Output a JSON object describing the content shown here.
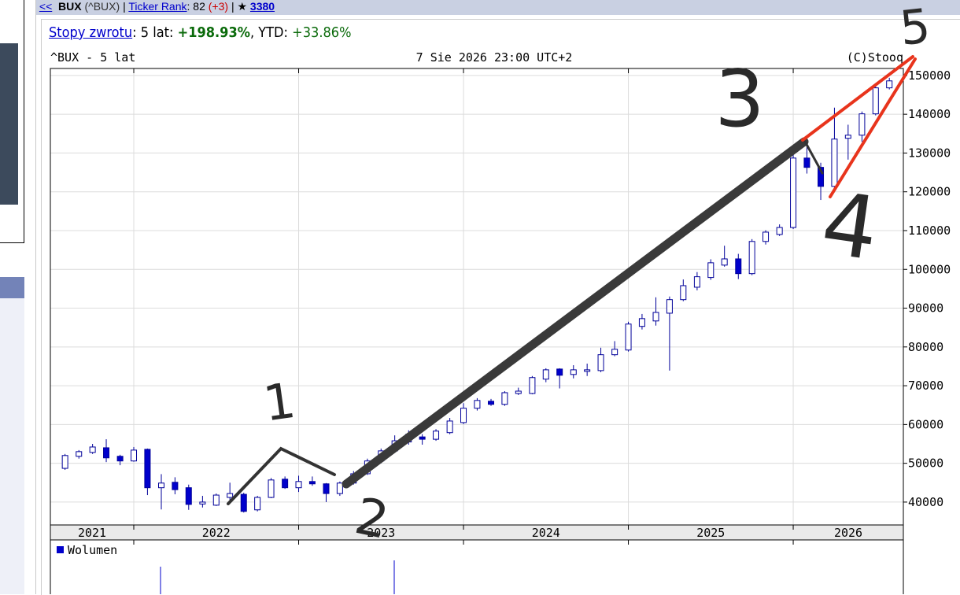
{
  "header": {
    "back": "<<",
    "ticker": "BUX",
    "symbol": "(^BUX)",
    "sep1": "|",
    "rank_link": "Ticker Rank",
    "rank": ": 82",
    "rank_change": "(+3)",
    "star": "| ★",
    "fans": "3380"
  },
  "returns": {
    "link": "Stopy zwrotu",
    "period": ": 5 lat:",
    "five_year": "+198.93%",
    "ytd_label": ", YTD:",
    "ytd": "+33.86%"
  },
  "chart_data": {
    "type": "candlestick",
    "title": "^BUX - 5 lat",
    "subtitle": "7 Sie 2026 23:00 UTC+2",
    "credit": "(C)Stooq",
    "x": [
      2021.583,
      2021.667,
      2021.75,
      2021.833,
      2021.917,
      2022,
      2022.083,
      2022.167,
      2022.25,
      2022.333,
      2022.417,
      2022.5,
      2022.583,
      2022.667,
      2022.75,
      2022.833,
      2022.917,
      2023,
      2023.083,
      2023.167,
      2023.25,
      2023.333,
      2023.417,
      2023.5,
      2023.583,
      2023.667,
      2023.75,
      2023.833,
      2023.917,
      2024,
      2024.083,
      2024.167,
      2024.25,
      2024.333,
      2024.417,
      2024.5,
      2024.583,
      2024.667,
      2024.75,
      2024.833,
      2024.917,
      2025,
      2025.083,
      2025.167,
      2025.25,
      2025.333,
      2025.417,
      2025.5,
      2025.583,
      2025.667,
      2025.75,
      2025.833,
      2025.917,
      2026,
      2026.083,
      2026.167,
      2026.25,
      2026.333,
      2026.417,
      2026.5,
      2026.583
    ],
    "open": [
      48700,
      51800,
      52800,
      54000,
      51800,
      50600,
      53600,
      43700,
      45100,
      43700,
      39500,
      39200,
      41200,
      42000,
      38000,
      41200,
      45900,
      43700,
      45300,
      44700,
      42200,
      44900,
      47300,
      50600,
      53200,
      55500,
      56800,
      56200,
      57900,
      60500,
      64200,
      66000,
      65200,
      68000,
      68000,
      71700,
      74300,
      72900,
      73700,
      73900,
      78000,
      79200,
      85300,
      86700,
      88700,
      92200,
      95400,
      97900,
      101100,
      102700,
      98900,
      107200,
      109000,
      110800,
      128700,
      126300,
      121400,
      133800,
      134600,
      140100,
      146800
    ],
    "high": [
      52400,
      53400,
      55000,
      56200,
      52200,
      54200,
      53800,
      47200,
      46400,
      44500,
      41600,
      42200,
      45000,
      42400,
      41600,
      46200,
      46600,
      46800,
      46600,
      44900,
      45300,
      48000,
      51200,
      53800,
      57200,
      58500,
      57500,
      58800,
      61700,
      65500,
      66800,
      66600,
      68600,
      69500,
      72500,
      74500,
      74500,
      75300,
      75700,
      79800,
      81500,
      86500,
      88500,
      92800,
      93000,
      97400,
      99300,
      102600,
      106100,
      104000,
      107800,
      110100,
      111600,
      130000,
      131700,
      127500,
      141700,
      137300,
      140700,
      147400,
      149400
    ],
    "low": [
      48300,
      51200,
      52400,
      50300,
      49500,
      50400,
      41800,
      38100,
      42000,
      38000,
      38600,
      39000,
      40600,
      37300,
      37600,
      41000,
      43400,
      42600,
      44200,
      40000,
      41600,
      44500,
      47000,
      50000,
      52800,
      54800,
      54800,
      55800,
      57500,
      60100,
      63600,
      64800,
      64800,
      67600,
      67800,
      70900,
      69300,
      71900,
      72500,
      73500,
      77600,
      78800,
      84500,
      85500,
      73900,
      91800,
      94600,
      97300,
      100700,
      97500,
      98500,
      106400,
      108600,
      110400,
      124700,
      117900,
      120600,
      128300,
      132900,
      139700,
      146400
    ],
    "close": [
      52000,
      53000,
      54200,
      51400,
      50600,
      53400,
      43700,
      44900,
      43200,
      39400,
      40000,
      41800,
      42200,
      37600,
      41200,
      45700,
      43700,
      45300,
      44700,
      42200,
      44900,
      47300,
      50600,
      53200,
      55800,
      57500,
      56200,
      58300,
      60900,
      64200,
      66200,
      65200,
      68200,
      68600,
      72100,
      74100,
      72700,
      74100,
      74100,
      78000,
      79400,
      85900,
      87300,
      88900,
      92200,
      95800,
      98100,
      101700,
      102700,
      98900,
      107200,
      109600,
      110800,
      128700,
      126300,
      121400,
      133600,
      134600,
      140100,
      146800,
      148600
    ],
    "up_color": "#ffffff",
    "down_color": "#0000cc",
    "stroke_color": "#000099",
    "xlim": [
      2021.494,
      2026.668
    ],
    "xticks": [
      2022,
      2023,
      2024,
      2025,
      2026
    ],
    "year_labels": [
      2021,
      2022,
      2023,
      2024,
      2025,
      2026
    ],
    "ylim": [
      34100,
      151800
    ],
    "yticks": [
      40000,
      50000,
      60000,
      70000,
      80000,
      90000,
      100000,
      110000,
      120000,
      130000,
      140000,
      150000
    ],
    "grid": true,
    "volume_legend": "Wolumen",
    "annotations": [
      "1",
      "2",
      "3",
      "4",
      "5"
    ]
  }
}
